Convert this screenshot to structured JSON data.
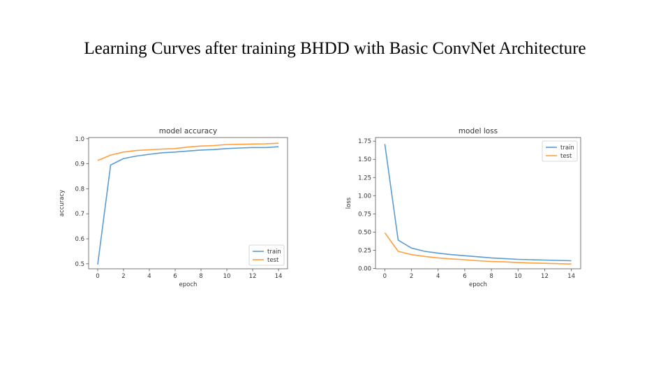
{
  "slide": {
    "title": "Learning Curves after training BHDD with Basic ConvNet Architecture"
  },
  "colors": {
    "train": "#5b9bd0",
    "test": "#ff9f3f",
    "axis": "#555555",
    "text": "#333333"
  },
  "chart_data": [
    {
      "type": "line",
      "title": "model accuracy",
      "xlabel": "epoch",
      "ylabel": "accuracy",
      "x": [
        0,
        1,
        2,
        3,
        4,
        5,
        6,
        7,
        8,
        9,
        10,
        11,
        12,
        13,
        14
      ],
      "xlim": [
        -0.7,
        14.7
      ],
      "ylim": [
        0.48,
        1.005
      ],
      "xticks": [
        0,
        2,
        4,
        6,
        8,
        10,
        12,
        14
      ],
      "yticks": [
        0.5,
        0.6,
        0.7,
        0.8,
        0.9,
        1.0
      ],
      "ytick_labels": [
        "0.5",
        "0.6",
        "0.7",
        "0.8",
        "0.9",
        "1.0"
      ],
      "legend": "lower right",
      "series": [
        {
          "name": "train",
          "values": [
            0.497,
            0.895,
            0.921,
            0.931,
            0.938,
            0.944,
            0.947,
            0.951,
            0.955,
            0.957,
            0.961,
            0.963,
            0.965,
            0.965,
            0.968
          ]
        },
        {
          "name": "test",
          "values": [
            0.913,
            0.935,
            0.947,
            0.953,
            0.956,
            0.959,
            0.961,
            0.967,
            0.971,
            0.973,
            0.977,
            0.978,
            0.979,
            0.98,
            0.982
          ]
        }
      ]
    },
    {
      "type": "line",
      "title": "model loss",
      "xlabel": "epoch",
      "ylabel": "loss",
      "x": [
        0,
        1,
        2,
        3,
        4,
        5,
        6,
        7,
        8,
        9,
        10,
        11,
        12,
        13,
        14
      ],
      "xlim": [
        -0.7,
        14.7
      ],
      "ylim": [
        -0.005,
        1.8
      ],
      "xticks": [
        0,
        2,
        4,
        6,
        8,
        10,
        12,
        14
      ],
      "yticks": [
        0,
        0.25,
        0.5,
        0.75,
        1.0,
        1.25,
        1.5,
        1.75
      ],
      "ytick_labels": [
        "0.00",
        "0.25",
        "0.50",
        "0.75",
        "1.00",
        "1.25",
        "1.50",
        "1.75"
      ],
      "legend": "upper right",
      "series": [
        {
          "name": "train",
          "values": [
            1.71,
            0.39,
            0.28,
            0.235,
            0.21,
            0.19,
            0.175,
            0.16,
            0.145,
            0.135,
            0.125,
            0.12,
            0.115,
            0.11,
            0.105
          ]
        },
        {
          "name": "test",
          "values": [
            0.49,
            0.235,
            0.19,
            0.165,
            0.145,
            0.13,
            0.12,
            0.105,
            0.095,
            0.09,
            0.08,
            0.075,
            0.07,
            0.065,
            0.06
          ]
        }
      ]
    }
  ]
}
